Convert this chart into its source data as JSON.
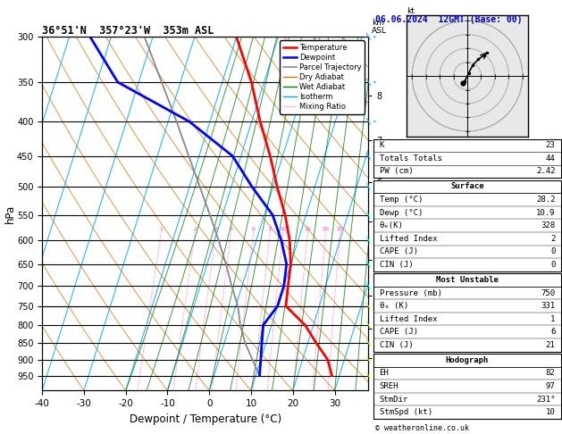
{
  "title_left": "36°51'N  357°23'W  353m ASL",
  "title_right": "06.06.2024  12GMT (Base: 00)",
  "xlabel": "Dewpoint / Temperature (°C)",
  "ylabel_left": "hPa",
  "pressure_levels": [
    300,
    350,
    400,
    450,
    500,
    550,
    600,
    650,
    700,
    750,
    800,
    850,
    900,
    950
  ],
  "temp_range": [
    -40,
    38
  ],
  "temp_ticks": [
    -40,
    -30,
    -20,
    -10,
    0,
    10,
    20,
    30
  ],
  "mixing_ratios": [
    1,
    2,
    3,
    4,
    6,
    8,
    10,
    15,
    20,
    25
  ],
  "skew_factor": 22,
  "bg_color": "#ffffff",
  "temp_color": "#ff0000",
  "dewp_color": "#0000ff",
  "parcel_color": "#888888",
  "dry_adiabat_color": "#cc7700",
  "wet_adiabat_color": "#007700",
  "isotherm_color": "#00aaff",
  "mixing_ratio_color": "#ff44aa",
  "pressure_data": [
    950,
    900,
    850,
    800,
    750,
    700,
    650,
    600,
    550,
    500,
    450,
    400,
    350,
    300
  ],
  "temp_data": [
    28.2,
    26.0,
    22.0,
    18.0,
    12.0,
    11.0,
    10.0,
    8.0,
    5.0,
    1.0,
    -3.0,
    -8.0,
    -13.0,
    -20.0
  ],
  "dewp_data": [
    10.9,
    10.0,
    9.0,
    8.0,
    10.0,
    10.0,
    9.0,
    6.0,
    2.0,
    -5.0,
    -12.0,
    -25.0,
    -45.0,
    -55.0
  ],
  "parcel_data": [
    10.9,
    8.0,
    5.0,
    2.5,
    0.5,
    -2.5,
    -5.5,
    -9.0,
    -13.0,
    -17.5,
    -22.5,
    -28.0,
    -34.5,
    -42.0
  ],
  "km_levels": [
    1,
    2,
    3,
    4,
    5,
    6,
    7,
    8
  ],
  "km_pressures": [
    895,
    810,
    724,
    640,
    563,
    492,
    426,
    366
  ],
  "lcl_pressure": 750,
  "wind_barb_pressures": [
    950,
    900,
    850,
    800,
    750,
    700,
    650,
    600,
    550,
    500,
    450,
    400,
    350,
    300
  ],
  "wind_barb_colors": [
    "#aaff00",
    "#aaff00",
    "#aaff00",
    "#aaff00",
    "#aaff00",
    "#00ffff",
    "#00ffff",
    "#00ffff",
    "#00ffff",
    "#00ffff",
    "#00aaff",
    "#00aaff",
    "#00aaff",
    "#00aaff"
  ],
  "wind_barb_flags": [
    1,
    1,
    1,
    1,
    1,
    0,
    0,
    0,
    0,
    0,
    0,
    0,
    0,
    0
  ],
  "stats": {
    "K": 23,
    "Totals Totals": 44,
    "PW (cm)": 2.42,
    "Surface": {
      "Temp (C)": 28.2,
      "Dewp (C)": 10.9,
      "theta_e_K": 328,
      "Lifted Index": 2,
      "CAPE (J)": 0,
      "CIN (J)": 0
    },
    "Most Unstable": {
      "Pressure (mb)": 750,
      "theta_e_K": 331,
      "Lifted Index": 1,
      "CAPE (J)": 6,
      "CIN (J)": 21
    },
    "Hodograph": {
      "EH": 82,
      "SREH": 97,
      "StmDir": "231°",
      "StmSpd (kt)": 10
    }
  },
  "copyright": "© weatheronline.co.uk",
  "hodo_trace_u": [
    -1.0,
    0.5,
    2.0,
    4.0,
    6.0,
    7.0
  ],
  "hodo_trace_v": [
    -2.0,
    1.0,
    4.0,
    6.0,
    7.5,
    8.5
  ],
  "hodo_storm_u": -1.5,
  "hodo_storm_v": -2.5
}
